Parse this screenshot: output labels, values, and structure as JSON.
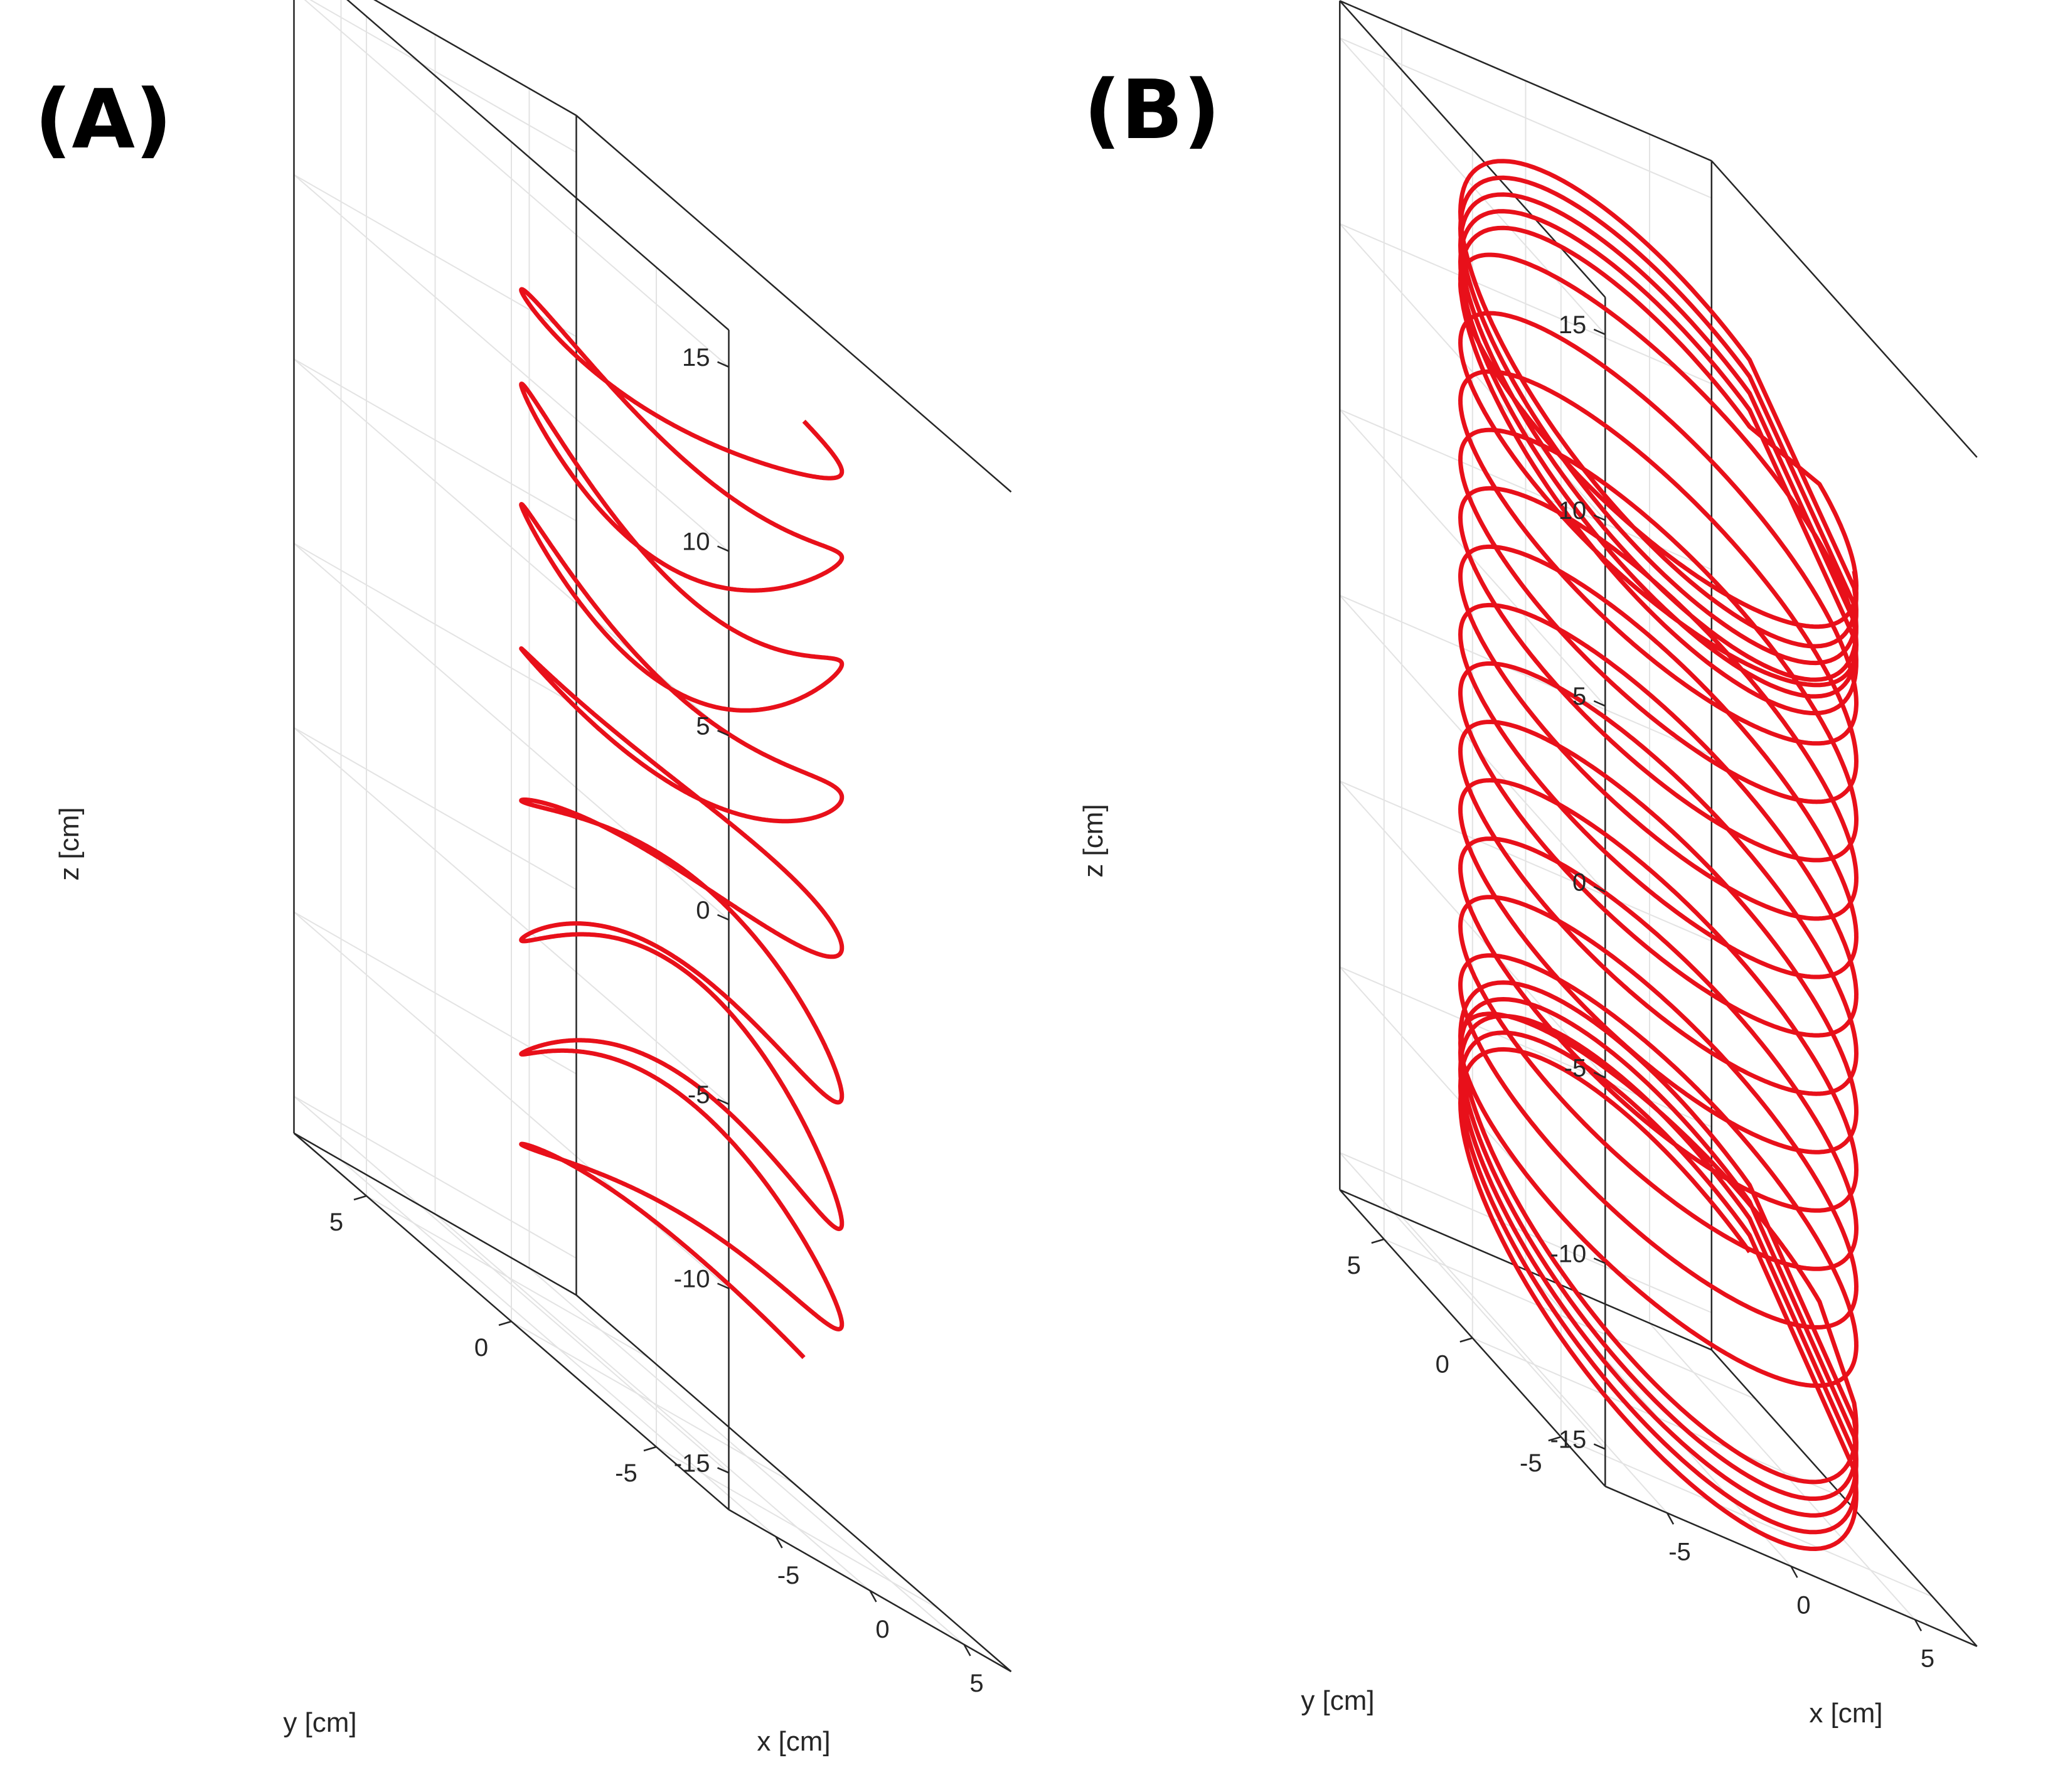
{
  "chart_data": [
    {
      "type": "line3d",
      "panel_label": "(A)",
      "xlabel": "x [cm]",
      "ylabel": "y [cm]",
      "zlabel": "z [cm]",
      "xlim": [
        -7.5,
        7.5
      ],
      "ylim": [
        -7.5,
        7.5
      ],
      "zlim": [
        -16,
        16
      ],
      "xticks": [
        -5,
        0,
        5
      ],
      "yticks": [
        -5,
        0,
        5
      ],
      "zticks": [
        -15,
        -10,
        -5,
        0,
        5,
        10,
        15
      ],
      "grid": true,
      "line_color": "#e8101a",
      "series": [
        {
          "name": "",
          "shape": "open half-cylinder helix with axial sweep",
          "radius": 6.5,
          "z_range": [
            -12.2,
            13.2
          ],
          "turns": 16,
          "sweep_amplitude": 14,
          "sweep_cycles": 1
        }
      ]
    },
    {
      "type": "line3d",
      "panel_label": "(B)",
      "xlabel": "x [cm]",
      "ylabel": "y [cm]",
      "zlabel": "z [cm]",
      "xlim": [
        -7.5,
        7.5
      ],
      "ylim": [
        -7.5,
        7.5
      ],
      "zlim": [
        -16,
        16
      ],
      "xticks": [
        -5,
        0,
        5
      ],
      "yticks": [
        -5,
        0,
        5
      ],
      "zticks": [
        -15,
        -10,
        -5,
        0,
        5,
        10,
        15
      ],
      "grid": true,
      "line_color": "#e8101a",
      "series": [
        {
          "name": "",
          "shape": "closed cylinder helix with end rings",
          "radius": 6.5,
          "z_range": [
            -11.0,
            11.0
          ],
          "turns": 14,
          "sweep_amplitude": 9,
          "end_rings": 5
        }
      ]
    }
  ]
}
